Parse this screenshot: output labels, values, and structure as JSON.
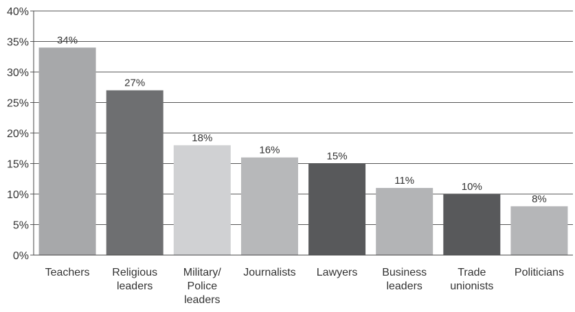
{
  "chart_data": {
    "type": "bar",
    "categories": [
      "Teachers",
      "Religious leaders",
      "Military/ Police leaders",
      "Journalists",
      "Lawyers",
      "Business leaders",
      "Trade unionists",
      "Politicians"
    ],
    "category_lines": [
      [
        "Teachers"
      ],
      [
        "Religious",
        "leaders"
      ],
      [
        "Military/",
        "Police",
        "leaders"
      ],
      [
        "Journalists"
      ],
      [
        "Lawyers"
      ],
      [
        "Business",
        "leaders"
      ],
      [
        "Trade",
        "unionists"
      ],
      [
        "Politicians"
      ]
    ],
    "values": [
      34,
      27,
      18,
      16,
      15,
      11,
      10,
      8
    ],
    "data_labels": [
      "34%",
      "27%",
      "18%",
      "16%",
      "15%",
      "11%",
      "10%",
      "8%"
    ],
    "bar_colors": [
      "#a7a8aa",
      "#6e6f71",
      "#d0d1d3",
      "#b7b8ba",
      "#58595b",
      "#b3b4b6",
      "#58595b",
      "#b5b6b8"
    ],
    "title": "",
    "xlabel": "",
    "ylabel": "",
    "ylim": [
      0,
      40
    ],
    "yticks": [
      0,
      5,
      10,
      15,
      20,
      25,
      30,
      35,
      40
    ],
    "ytick_labels": [
      "0%",
      "5%",
      "10%",
      "15%",
      "20%",
      "25%",
      "30%",
      "35%",
      "40%"
    ],
    "grid": true,
    "legend": "none"
  }
}
